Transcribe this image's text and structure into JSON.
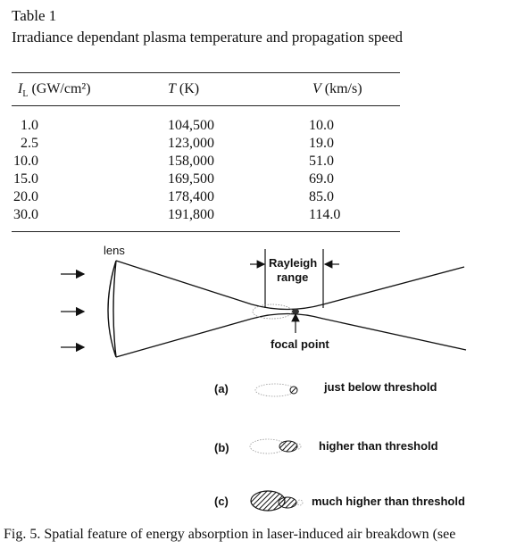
{
  "table": {
    "label": "Table 1",
    "title": "Irradiance dependant plasma temperature and propagation speed",
    "columns": [
      {
        "symbol": "I",
        "subscript": "L",
        "unit": "(GW/cm²)"
      },
      {
        "symbol": "T",
        "subscript": "",
        "unit": "(K)"
      },
      {
        "symbol": "V",
        "subscript": "",
        "unit": "(km/s)"
      }
    ],
    "rows": [
      [
        "1.0",
        "104,500",
        "10.0"
      ],
      [
        "2.5",
        "123,000",
        "19.0"
      ],
      [
        "10.0",
        "158,000",
        "51.0"
      ],
      [
        "15.0",
        "169,500",
        "69.0"
      ],
      [
        "20.0",
        "178,400",
        "85.0"
      ],
      [
        "30.0",
        "191,800",
        "114.0"
      ]
    ]
  },
  "figure": {
    "lens_label": "lens",
    "rayleigh_label_line1": "Rayleigh",
    "rayleigh_label_line2": "range",
    "focal_label": "focal point",
    "cases": [
      {
        "tag": "(a)",
        "description": "just below threshold"
      },
      {
        "tag": "(b)",
        "description": "higher than threshold"
      },
      {
        "tag": "(c)",
        "description": "much higher than threshold"
      }
    ],
    "caption": "Fig. 5. Spatial feature of energy absorption in laser-induced air breakdown (see"
  }
}
